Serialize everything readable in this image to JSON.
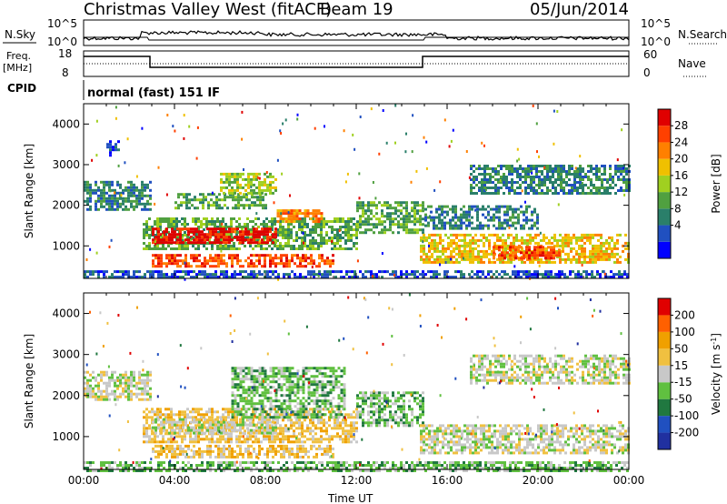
{
  "header": {
    "title": "Christmas Valley West (fitACF)",
    "beam": "Beam 19",
    "date": "05/Jun/2014"
  },
  "noise_panel": {
    "left_label": "N.Sky",
    "left_ticks": [
      "10^5",
      "10^0"
    ],
    "right_ticks": [
      "10^5",
      "10^0"
    ],
    "right_label": "N.Search"
  },
  "freq_panel": {
    "left_label_1": "Freq.",
    "left_label_2": "[MHz]",
    "left_ticks": [
      "18",
      "8"
    ],
    "right_ticks": [
      "60",
      "0"
    ],
    "right_label": "Nave"
  },
  "cpid": {
    "label": "CPID",
    "value": "normal (fast) 151 IF"
  },
  "chart_data": [
    {
      "type": "heatmap",
      "name": "power",
      "ylabel": "Slant Range [km]",
      "xlabel": "Time UT",
      "x_ticks": [
        "00:00",
        "04:00",
        "08:00",
        "12:00",
        "16:00",
        "20:00",
        "00:00"
      ],
      "xlim_hours": [
        0,
        24
      ],
      "y_ticks": [
        1000,
        2000,
        3000,
        4000
      ],
      "ylim": [
        200,
        4500
      ],
      "colorbar_label": "Power [dB]",
      "colorbar_ticks": [
        "28",
        "24",
        "20",
        "16",
        "12",
        "8",
        "4"
      ],
      "colors": [
        "#0000ff",
        "#2050c0",
        "#2a7f6a",
        "#50a040",
        "#a0d020",
        "#f0c000",
        "#ff8000",
        "#ff4000",
        "#e00000"
      ],
      "regions": [
        {
          "t0": 0.0,
          "t1": 2.9,
          "r0": 1900,
          "r1": 2600,
          "level": 2
        },
        {
          "t0": 1.0,
          "t1": 1.5,
          "r0": 3200,
          "r1": 3600,
          "level": 1
        },
        {
          "t0": 2.6,
          "t1": 12.0,
          "r0": 900,
          "r1": 1700,
          "level": 3
        },
        {
          "t0": 3.0,
          "t1": 8.5,
          "r0": 1100,
          "r1": 1450,
          "level": 8
        },
        {
          "t0": 8.5,
          "t1": 10.5,
          "r0": 1600,
          "r1": 1900,
          "level": 6
        },
        {
          "t0": 4.0,
          "t1": 8.0,
          "r0": 1900,
          "r1": 2300,
          "level": 3
        },
        {
          "t0": 6.0,
          "t1": 8.5,
          "r0": 2300,
          "r1": 2800,
          "level": 4
        },
        {
          "t0": 3.0,
          "t1": 11.0,
          "r0": 500,
          "r1": 800,
          "level": 7
        },
        {
          "t0": 12.0,
          "t1": 15.0,
          "r0": 1300,
          "r1": 2100,
          "level": 3
        },
        {
          "t0": 14.8,
          "t1": 24.0,
          "r0": 600,
          "r1": 1300,
          "level": 5
        },
        {
          "t0": 18.0,
          "t1": 21.0,
          "r0": 700,
          "r1": 1000,
          "level": 7
        },
        {
          "t0": 15.0,
          "t1": 20.0,
          "r0": 1400,
          "r1": 2000,
          "level": 2
        },
        {
          "t0": 17.0,
          "t1": 24.0,
          "r0": 2300,
          "r1": 3000,
          "level": 2
        },
        {
          "t0": 0.0,
          "t1": 24.0,
          "r0": 200,
          "r1": 400,
          "level": 1
        }
      ]
    },
    {
      "type": "heatmap",
      "name": "velocity",
      "ylabel": "Slant Range [km]",
      "xlabel": "Time UT",
      "x_ticks": [
        "00:00",
        "04:00",
        "08:00",
        "12:00",
        "16:00",
        "20:00",
        "00:00"
      ],
      "xlim_hours": [
        0,
        24
      ],
      "y_ticks": [
        1000,
        2000,
        3000,
        4000
      ],
      "ylim": [
        200,
        4500
      ],
      "colorbar_label": "Velocity [m s",
      "colorbar_label_sup": "-1",
      "colorbar_label_end": "]",
      "colorbar_ticks": [
        "200",
        "100",
        "50",
        "15",
        "-15",
        "-50",
        "-100",
        "-200"
      ],
      "colors": [
        "#2030a0",
        "#2050c0",
        "#207840",
        "#60c040",
        "#c8c8c8",
        "#f0c040",
        "#f0a000",
        "#ff6000",
        "#e00000"
      ],
      "regions": [
        {
          "t0": 0.0,
          "t1": 2.9,
          "r0": 1900,
          "r1": 2600,
          "level": 4
        },
        {
          "t0": 2.6,
          "t1": 12.0,
          "r0": 900,
          "r1": 1700,
          "level": 5
        },
        {
          "t0": 3.0,
          "t1": 8.5,
          "r0": 1100,
          "r1": 1450,
          "level": 4
        },
        {
          "t0": 3.0,
          "t1": 11.0,
          "r0": 500,
          "r1": 800,
          "level": 5
        },
        {
          "t0": 6.5,
          "t1": 11.5,
          "r0": 1500,
          "r1": 2700,
          "level": 3
        },
        {
          "t0": 12.0,
          "t1": 15.0,
          "r0": 1300,
          "r1": 2100,
          "level": 3
        },
        {
          "t0": 14.8,
          "t1": 24.0,
          "r0": 600,
          "r1": 1300,
          "level": 4
        },
        {
          "t0": 17.0,
          "t1": 24.0,
          "r0": 2300,
          "r1": 3000,
          "level": 4
        },
        {
          "t0": 0.0,
          "t1": 24.0,
          "r0": 200,
          "r1": 400,
          "level": 3
        }
      ]
    }
  ]
}
